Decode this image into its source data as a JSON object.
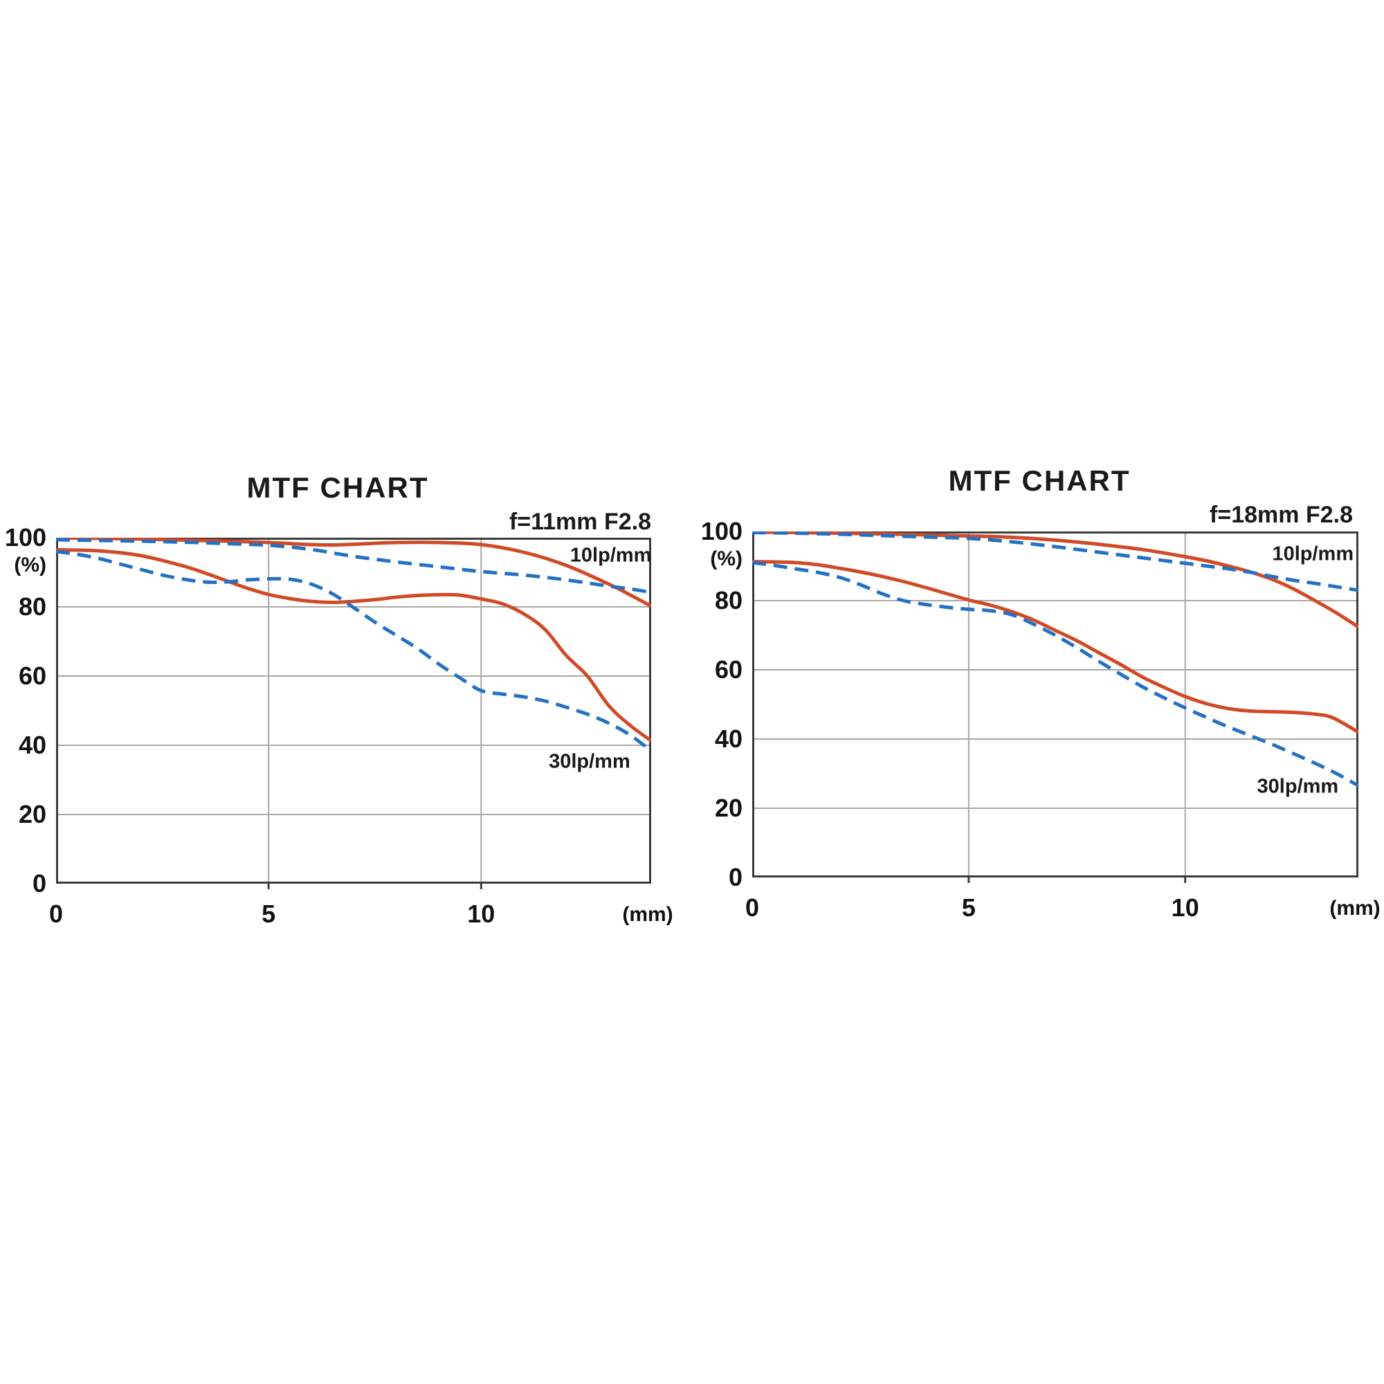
{
  "page": {
    "background": "#ffffff",
    "text_color": "#1a1a1a"
  },
  "chart_data": [
    {
      "type": "line",
      "title": "MTF CHART",
      "subtitle": "f=11mm F2.8",
      "xlabel": "(mm)",
      "ylabel": "(%)",
      "xlim": [
        0,
        14
      ],
      "ylim": [
        0,
        100
      ],
      "grid": true,
      "legend_position": "inline-annotations",
      "colors": {
        "sagittal": "#d14a26",
        "meridional": "#2471c4",
        "grid": "#a8a8a8",
        "frame": "#3c3c3c"
      },
      "x_ticks": [
        {
          "value": 0,
          "label": "0"
        },
        {
          "value": 5,
          "label": "5"
        },
        {
          "value": 10,
          "label": "10"
        }
      ],
      "y_ticks": [
        {
          "value": 0,
          "label": "0"
        },
        {
          "value": 20,
          "label": "20"
        },
        {
          "value": 40,
          "label": "40"
        },
        {
          "value": 60,
          "label": "60"
        },
        {
          "value": 80,
          "label": "80"
        },
        {
          "value": 100,
          "label": "100"
        }
      ],
      "annotations": [
        {
          "text": "10lp/mm",
          "x": 13.05,
          "y": 94.8
        },
        {
          "text": "30lp/mm",
          "x": 12.55,
          "y": 35.3
        }
      ],
      "series": [
        {
          "name": "10lp/mm sagittal",
          "frequency": "10lp/mm",
          "style": "solid",
          "color": "#d14a26",
          "points": [
            [
              0,
              100
            ],
            [
              1,
              99.8
            ],
            [
              2,
              99.6
            ],
            [
              3,
              99.3
            ],
            [
              4,
              99
            ],
            [
              5,
              98.6
            ],
            [
              6,
              98
            ],
            [
              6.5,
              97.9
            ],
            [
              7,
              98.1
            ],
            [
              8,
              98.6
            ],
            [
              9,
              98.6
            ],
            [
              10,
              98
            ],
            [
              11,
              95.8
            ],
            [
              12,
              92
            ],
            [
              13,
              86.6
            ],
            [
              13.5,
              83.5
            ],
            [
              14,
              80.2
            ]
          ]
        },
        {
          "name": "30lp/mm sagittal",
          "frequency": "30lp/mm",
          "style": "solid",
          "color": "#d14a26",
          "points": [
            [
              0,
              96.5
            ],
            [
              1,
              96.2
            ],
            [
              2,
              94.8
            ],
            [
              3,
              91.8
            ],
            [
              3.5,
              89.8
            ],
            [
              4,
              87.6
            ],
            [
              4.5,
              85.4
            ],
            [
              5,
              83.6
            ],
            [
              5.5,
              82.4
            ],
            [
              6,
              81.6
            ],
            [
              6.5,
              81.3
            ],
            [
              7,
              81.6
            ],
            [
              7.5,
              82.1
            ],
            [
              8,
              82.8
            ],
            [
              8.5,
              83.3
            ],
            [
              9,
              83.5
            ],
            [
              9.5,
              83.4
            ],
            [
              10,
              82.3
            ],
            [
              10.5,
              80.9
            ],
            [
              11,
              78
            ],
            [
              11.5,
              73.5
            ],
            [
              12,
              66
            ],
            [
              12.5,
              60
            ],
            [
              13,
              51.5
            ],
            [
              13.5,
              45.8
            ],
            [
              14,
              41.3
            ]
          ]
        },
        {
          "name": "10lp/mm meridional",
          "frequency": "10lp/mm",
          "style": "dashed",
          "color": "#2471c4",
          "points": [
            [
              0,
              99.4
            ],
            [
              1,
              99.2
            ],
            [
              2,
              99
            ],
            [
              3,
              98.7
            ],
            [
              4,
              98.3
            ],
            [
              5,
              97.8
            ],
            [
              6,
              96.6
            ],
            [
              7,
              94.6
            ],
            [
              8,
              93
            ],
            [
              9,
              91.6
            ],
            [
              10,
              90.2
            ],
            [
              11,
              89.2
            ],
            [
              12,
              87.8
            ],
            [
              13,
              86
            ],
            [
              13.5,
              85.2
            ],
            [
              14,
              84.2
            ]
          ]
        },
        {
          "name": "30lp/mm meridional",
          "frequency": "30lp/mm",
          "style": "dashed",
          "color": "#2471c4",
          "points": [
            [
              0,
              96
            ],
            [
              0.5,
              95.2
            ],
            [
              1,
              94
            ],
            [
              1.5,
              92.4
            ],
            [
              2,
              90.8
            ],
            [
              2.5,
              89.2
            ],
            [
              3,
              88
            ],
            [
              3.5,
              87.2
            ],
            [
              4,
              87.2
            ],
            [
              4.5,
              87.8
            ],
            [
              5,
              88.1
            ],
            [
              5.5,
              88
            ],
            [
              6,
              86.6
            ],
            [
              6.5,
              83.8
            ],
            [
              7,
              79.8
            ],
            [
              7.5,
              75.6
            ],
            [
              8,
              71.8
            ],
            [
              8.5,
              68
            ],
            [
              9,
              63.5
            ],
            [
              9.5,
              59.5
            ],
            [
              10,
              55.8
            ],
            [
              10.5,
              54.8
            ],
            [
              11,
              54
            ],
            [
              11.5,
              52.8
            ],
            [
              12,
              51
            ],
            [
              12.5,
              49
            ],
            [
              13,
              46.4
            ],
            [
              13.5,
              43
            ],
            [
              14,
              38.4
            ]
          ]
        }
      ]
    },
    {
      "type": "line",
      "title": "MTF CHART",
      "subtitle": "f=18mm F2.8",
      "xlabel": "(mm)",
      "ylabel": "(%)",
      "xlim": [
        0,
        14
      ],
      "ylim": [
        0,
        100
      ],
      "grid": true,
      "legend_position": "inline-annotations",
      "colors": {
        "sagittal": "#d14a26",
        "meridional": "#2471c4",
        "grid": "#a8a8a8",
        "frame": "#3c3c3c"
      },
      "x_ticks": [
        {
          "value": 0,
          "label": "0"
        },
        {
          "value": 5,
          "label": "5"
        },
        {
          "value": 10,
          "label": "10"
        }
      ],
      "y_ticks": [
        {
          "value": 0,
          "label": "0"
        },
        {
          "value": 20,
          "label": "20"
        },
        {
          "value": 40,
          "label": "40"
        },
        {
          "value": 60,
          "label": "60"
        },
        {
          "value": 80,
          "label": "80"
        },
        {
          "value": 100,
          "label": "100"
        }
      ],
      "annotations": [
        {
          "text": "10lp/mm",
          "x": 12.95,
          "y": 93.5
        },
        {
          "text": "30lp/mm",
          "x": 12.6,
          "y": 26.3
        }
      ],
      "series": [
        {
          "name": "10lp/mm sagittal",
          "frequency": "10lp/mm",
          "style": "solid",
          "color": "#d14a26",
          "points": [
            [
              0,
              99.8
            ],
            [
              1,
              99.7
            ],
            [
              2,
              99.5
            ],
            [
              3,
              99.3
            ],
            [
              4,
              99
            ],
            [
              5,
              98.7
            ],
            [
              6,
              98.3
            ],
            [
              7,
              97.5
            ],
            [
              8,
              96.3
            ],
            [
              9,
              94.8
            ],
            [
              10,
              92.7
            ],
            [
              10.5,
              91.5
            ],
            [
              11,
              90
            ],
            [
              11.5,
              88.3
            ],
            [
              12,
              86.2
            ],
            [
              12.5,
              83.4
            ],
            [
              13,
              80
            ],
            [
              13.5,
              76.4
            ],
            [
              14,
              72.4
            ]
          ]
        },
        {
          "name": "30lp/mm sagittal",
          "frequency": "30lp/mm",
          "style": "solid",
          "color": "#d14a26",
          "points": [
            [
              0,
              91.3
            ],
            [
              0.5,
              91.2
            ],
            [
              1,
              91
            ],
            [
              1.5,
              90.4
            ],
            [
              2,
              89.4
            ],
            [
              2.5,
              88.3
            ],
            [
              3,
              87
            ],
            [
              3.5,
              85.5
            ],
            [
              4,
              83.8
            ],
            [
              4.5,
              82
            ],
            [
              5,
              80.2
            ],
            [
              5.5,
              78.7
            ],
            [
              6,
              76.8
            ],
            [
              6.5,
              74.4
            ],
            [
              7,
              71.4
            ],
            [
              7.5,
              68.4
            ],
            [
              8,
              65
            ],
            [
              8.5,
              61.6
            ],
            [
              9,
              58
            ],
            [
              9.5,
              55
            ],
            [
              10,
              52.3
            ],
            [
              10.5,
              50.2
            ],
            [
              11,
              48.8
            ],
            [
              11.5,
              48.1
            ],
            [
              12,
              47.9
            ],
            [
              12.5,
              47.7
            ],
            [
              13,
              47.2
            ],
            [
              13.4,
              46.2
            ],
            [
              14,
              42
            ]
          ]
        },
        {
          "name": "10lp/mm meridional",
          "frequency": "10lp/mm",
          "style": "dashed",
          "color": "#2471c4",
          "points": [
            [
              0,
              99.7
            ],
            [
              1,
              99.5
            ],
            [
              2,
              99.2
            ],
            [
              3,
              98.8
            ],
            [
              4,
              98.4
            ],
            [
              5,
              98
            ],
            [
              6,
              97
            ],
            [
              7,
              95.6
            ],
            [
              8,
              94
            ],
            [
              9,
              92.4
            ],
            [
              10,
              90.8
            ],
            [
              10.5,
              90
            ],
            [
              11,
              89.2
            ],
            [
              11.5,
              88.2
            ],
            [
              12,
              87
            ],
            [
              12.5,
              85.9
            ],
            [
              13,
              85
            ],
            [
              13.5,
              84
            ],
            [
              14,
              83
            ]
          ]
        },
        {
          "name": "30lp/mm meridional",
          "frequency": "30lp/mm",
          "style": "dashed",
          "color": "#2471c4",
          "points": [
            [
              0,
              91
            ],
            [
              0.5,
              90.2
            ],
            [
              1,
              89.2
            ],
            [
              1.5,
              88.2
            ],
            [
              2,
              86.8
            ],
            [
              2.5,
              84.6
            ],
            [
              3,
              82
            ],
            [
              3.5,
              80
            ],
            [
              4,
              78.9
            ],
            [
              4.5,
              78.1
            ],
            [
              5,
              77.5
            ],
            [
              5.5,
              77.1
            ],
            [
              6,
              75.9
            ],
            [
              6.5,
              73.2
            ],
            [
              7,
              70
            ],
            [
              7.5,
              66.4
            ],
            [
              8,
              62.5
            ],
            [
              8.5,
              58.8
            ],
            [
              9,
              55.2
            ],
            [
              9.5,
              52
            ],
            [
              10,
              49
            ],
            [
              10.5,
              46.2
            ],
            [
              11,
              43.5
            ],
            [
              11.5,
              41
            ],
            [
              12,
              38.5
            ],
            [
              12.5,
              35.8
            ],
            [
              13,
              33
            ],
            [
              13.5,
              30
            ],
            [
              14,
              26.5
            ]
          ]
        }
      ]
    }
  ]
}
